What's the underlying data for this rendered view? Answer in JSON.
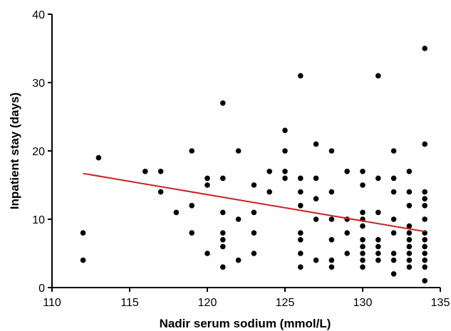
{
  "chart_data": {
    "type": "scatter",
    "title": "",
    "xlabel": "Nadir serum sodium (mmol/L)",
    "ylabel": "Inpatient stay (days)",
    "xlim": [
      110,
      135
    ],
    "ylim": [
      0,
      40
    ],
    "xticks": [
      110,
      115,
      120,
      125,
      130,
      135
    ],
    "yticks": [
      0,
      10,
      20,
      30,
      40
    ],
    "grid": false,
    "legend": "none",
    "point_color": "#000000",
    "fit_line_color": "#cc2222",
    "points": [
      [
        112,
        8
      ],
      [
        112,
        4
      ],
      [
        113,
        19
      ],
      [
        116,
        17
      ],
      [
        117,
        17
      ],
      [
        117,
        14
      ],
      [
        118,
        11
      ],
      [
        119,
        20
      ],
      [
        119,
        12
      ],
      [
        119,
        8
      ],
      [
        120,
        16
      ],
      [
        120,
        15
      ],
      [
        120,
        5
      ],
      [
        121,
        27
      ],
      [
        121,
        16
      ],
      [
        121,
        11
      ],
      [
        121,
        8
      ],
      [
        121,
        7
      ],
      [
        121,
        6
      ],
      [
        121,
        3
      ],
      [
        122,
        20
      ],
      [
        122,
        10
      ],
      [
        122,
        4
      ],
      [
        123,
        15
      ],
      [
        123,
        11
      ],
      [
        123,
        8
      ],
      [
        123,
        5
      ],
      [
        124,
        17
      ],
      [
        124,
        14
      ],
      [
        125,
        23
      ],
      [
        125,
        20
      ],
      [
        125,
        17
      ],
      [
        125,
        16
      ],
      [
        126,
        31
      ],
      [
        126,
        16
      ],
      [
        126,
        14
      ],
      [
        126,
        12
      ],
      [
        126,
        8
      ],
      [
        126,
        7
      ],
      [
        126,
        5
      ],
      [
        126,
        3
      ],
      [
        127,
        21
      ],
      [
        127,
        16
      ],
      [
        127,
        13
      ],
      [
        127,
        10
      ],
      [
        127,
        4
      ],
      [
        128,
        20
      ],
      [
        128,
        14
      ],
      [
        128,
        10
      ],
      [
        128,
        7
      ],
      [
        128,
        4
      ],
      [
        128,
        3
      ],
      [
        129,
        17
      ],
      [
        129,
        10
      ],
      [
        129,
        8
      ],
      [
        129,
        5
      ],
      [
        130,
        17
      ],
      [
        130,
        15
      ],
      [
        130,
        11
      ],
      [
        130,
        10
      ],
      [
        130,
        9
      ],
      [
        130,
        7
      ],
      [
        130,
        6
      ],
      [
        130,
        5
      ],
      [
        130,
        4
      ],
      [
        130,
        3
      ],
      [
        131,
        31
      ],
      [
        131,
        16
      ],
      [
        131,
        11
      ],
      [
        131,
        7
      ],
      [
        131,
        6
      ],
      [
        131,
        5
      ],
      [
        131,
        4
      ],
      [
        132,
        20
      ],
      [
        132,
        16
      ],
      [
        132,
        14
      ],
      [
        132,
        10
      ],
      [
        132,
        8
      ],
      [
        132,
        5
      ],
      [
        132,
        4
      ],
      [
        132,
        2
      ],
      [
        133,
        17
      ],
      [
        133,
        14
      ],
      [
        133,
        12
      ],
      [
        133,
        9
      ],
      [
        133,
        8
      ],
      [
        133,
        7
      ],
      [
        133,
        6
      ],
      [
        133,
        5
      ],
      [
        133,
        4
      ],
      [
        133,
        3
      ],
      [
        134,
        35
      ],
      [
        134,
        21
      ],
      [
        134,
        14
      ],
      [
        134,
        13
      ],
      [
        134,
        12
      ],
      [
        134,
        10
      ],
      [
        134,
        8
      ],
      [
        134,
        7
      ],
      [
        134,
        6
      ],
      [
        134,
        5
      ],
      [
        134,
        4
      ],
      [
        134,
        3
      ],
      [
        134,
        1
      ]
    ],
    "fit_line": {
      "x": [
        112,
        134
      ],
      "y": [
        16.7,
        8.2
      ]
    }
  }
}
